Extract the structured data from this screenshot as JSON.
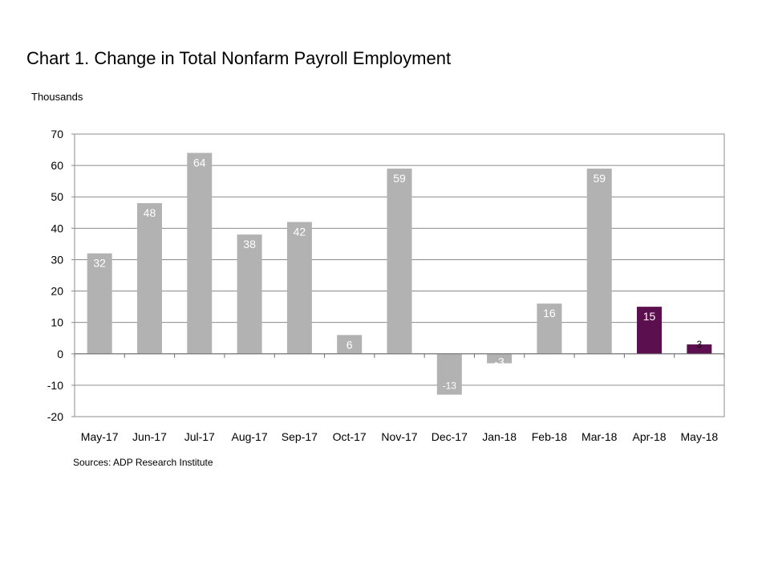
{
  "chart_title": "Chart 1. Change  in Total Nonfarm Payroll Employment",
  "units_label": "Thousands",
  "source_note": "Sources: ADP Research Institute",
  "colors": {
    "bar_default": "#b2b2b2",
    "bar_highlight": "#5c0f4f",
    "gridline": "#8c8c8c",
    "axis": "#8c8c8c",
    "label_on_bar": "#ffffff",
    "label_small": "#000000"
  },
  "chart_data": {
    "type": "bar",
    "title": "Chart 1. Change  in Total Nonfarm Payroll Employment",
    "ylabel": "Thousands",
    "xlabel": "",
    "ylim": [
      -20,
      70
    ],
    "yticks": [
      70,
      60,
      50,
      40,
      30,
      20,
      10,
      0,
      -10,
      -20
    ],
    "grid": true,
    "categories": [
      "May-17",
      "Jun-17",
      "Jul-17",
      "Aug-17",
      "Sep-17",
      "Oct-17",
      "Nov-17",
      "Dec-17",
      "Jan-18",
      "Feb-18",
      "Mar-18",
      "Apr-18",
      "May-18"
    ],
    "values": [
      32,
      48,
      64,
      38,
      42,
      6,
      59,
      -13,
      -3,
      16,
      59,
      15,
      3
    ],
    "highlighted": [
      "Apr-18",
      "May-18"
    ]
  }
}
